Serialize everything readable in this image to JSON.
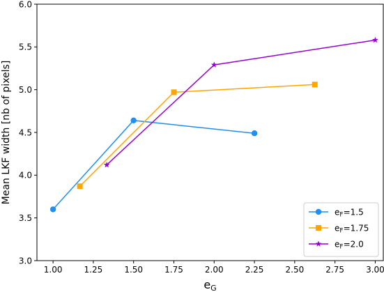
{
  "chart_data": {
    "type": "line",
    "title": "",
    "xlabel": "e",
    "xlabel_sub": "G",
    "ylabel": "Mean LKF width [nb of pixels]",
    "xlim": [
      0.9,
      3.05
    ],
    "ylim": [
      3.0,
      6.0
    ],
    "xticks": [
      1.0,
      1.25,
      1.5,
      1.75,
      2.0,
      2.25,
      2.5,
      2.75,
      3.0
    ],
    "xtick_labels": [
      "1.00",
      "1.25",
      "1.50",
      "1.75",
      "2.00",
      "2.25",
      "2.50",
      "2.75",
      "3.00"
    ],
    "yticks": [
      3.0,
      3.5,
      4.0,
      4.5,
      5.0,
      5.5,
      6.0
    ],
    "ytick_labels": [
      "3.0",
      "3.5",
      "4.0",
      "4.5",
      "5.0",
      "5.5",
      "6.0"
    ],
    "grid": false,
    "legend_position": "bottom-right",
    "series": [
      {
        "name": "e",
        "name_sub": "F",
        "name_suffix": "=1.5",
        "color": "#1f8ff0",
        "marker": "circle",
        "x": [
          1.0,
          1.5,
          2.25
        ],
        "y": [
          3.6,
          4.64,
          4.49
        ]
      },
      {
        "name": "e",
        "name_sub": "F",
        "name_suffix": "=1.75",
        "color": "#ffa500",
        "marker": "square",
        "x": [
          1.1667,
          1.75,
          2.625
        ],
        "y": [
          3.87,
          4.97,
          5.06
        ]
      },
      {
        "name": "e",
        "name_sub": "F",
        "name_suffix": "=2.0",
        "color": "#9400d3",
        "marker": "star",
        "x": [
          1.3333,
          2.0,
          3.0
        ],
        "y": [
          4.12,
          5.29,
          5.58
        ]
      }
    ]
  }
}
